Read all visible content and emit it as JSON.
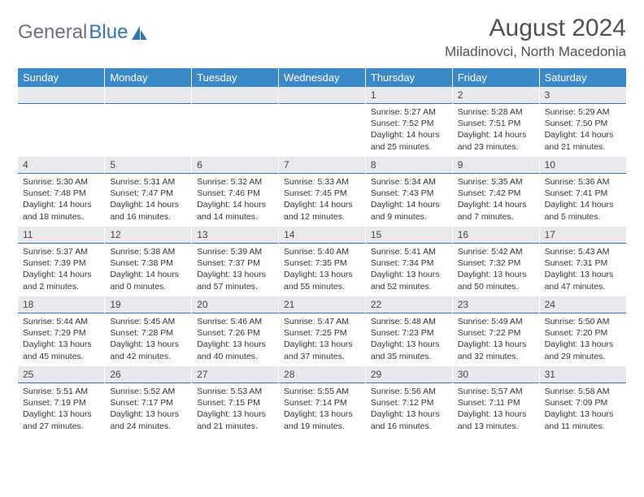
{
  "brand": {
    "part1": "General",
    "part2": "Blue"
  },
  "title": "August 2024",
  "location": "Miladinovci, North Macedonia",
  "colors": {
    "header_bg": "#3a8ac9",
    "daynum_bg": "#e7e9ec",
    "rule": "#2e74b5"
  },
  "weekdays": [
    "Sunday",
    "Monday",
    "Tuesday",
    "Wednesday",
    "Thursday",
    "Friday",
    "Saturday"
  ],
  "weeks": [
    [
      null,
      null,
      null,
      null,
      {
        "n": "1",
        "sr": "5:27 AM",
        "ss": "7:52 PM",
        "dl": "14 hours and 25 minutes."
      },
      {
        "n": "2",
        "sr": "5:28 AM",
        "ss": "7:51 PM",
        "dl": "14 hours and 23 minutes."
      },
      {
        "n": "3",
        "sr": "5:29 AM",
        "ss": "7:50 PM",
        "dl": "14 hours and 21 minutes."
      }
    ],
    [
      {
        "n": "4",
        "sr": "5:30 AM",
        "ss": "7:48 PM",
        "dl": "14 hours and 18 minutes."
      },
      {
        "n": "5",
        "sr": "5:31 AM",
        "ss": "7:47 PM",
        "dl": "14 hours and 16 minutes."
      },
      {
        "n": "6",
        "sr": "5:32 AM",
        "ss": "7:46 PM",
        "dl": "14 hours and 14 minutes."
      },
      {
        "n": "7",
        "sr": "5:33 AM",
        "ss": "7:45 PM",
        "dl": "14 hours and 12 minutes."
      },
      {
        "n": "8",
        "sr": "5:34 AM",
        "ss": "7:43 PM",
        "dl": "14 hours and 9 minutes."
      },
      {
        "n": "9",
        "sr": "5:35 AM",
        "ss": "7:42 PM",
        "dl": "14 hours and 7 minutes."
      },
      {
        "n": "10",
        "sr": "5:36 AM",
        "ss": "7:41 PM",
        "dl": "14 hours and 5 minutes."
      }
    ],
    [
      {
        "n": "11",
        "sr": "5:37 AM",
        "ss": "7:39 PM",
        "dl": "14 hours and 2 minutes."
      },
      {
        "n": "12",
        "sr": "5:38 AM",
        "ss": "7:38 PM",
        "dl": "14 hours and 0 minutes."
      },
      {
        "n": "13",
        "sr": "5:39 AM",
        "ss": "7:37 PM",
        "dl": "13 hours and 57 minutes."
      },
      {
        "n": "14",
        "sr": "5:40 AM",
        "ss": "7:35 PM",
        "dl": "13 hours and 55 minutes."
      },
      {
        "n": "15",
        "sr": "5:41 AM",
        "ss": "7:34 PM",
        "dl": "13 hours and 52 minutes."
      },
      {
        "n": "16",
        "sr": "5:42 AM",
        "ss": "7:32 PM",
        "dl": "13 hours and 50 minutes."
      },
      {
        "n": "17",
        "sr": "5:43 AM",
        "ss": "7:31 PM",
        "dl": "13 hours and 47 minutes."
      }
    ],
    [
      {
        "n": "18",
        "sr": "5:44 AM",
        "ss": "7:29 PM",
        "dl": "13 hours and 45 minutes."
      },
      {
        "n": "19",
        "sr": "5:45 AM",
        "ss": "7:28 PM",
        "dl": "13 hours and 42 minutes."
      },
      {
        "n": "20",
        "sr": "5:46 AM",
        "ss": "7:26 PM",
        "dl": "13 hours and 40 minutes."
      },
      {
        "n": "21",
        "sr": "5:47 AM",
        "ss": "7:25 PM",
        "dl": "13 hours and 37 minutes."
      },
      {
        "n": "22",
        "sr": "5:48 AM",
        "ss": "7:23 PM",
        "dl": "13 hours and 35 minutes."
      },
      {
        "n": "23",
        "sr": "5:49 AM",
        "ss": "7:22 PM",
        "dl": "13 hours and 32 minutes."
      },
      {
        "n": "24",
        "sr": "5:50 AM",
        "ss": "7:20 PM",
        "dl": "13 hours and 29 minutes."
      }
    ],
    [
      {
        "n": "25",
        "sr": "5:51 AM",
        "ss": "7:19 PM",
        "dl": "13 hours and 27 minutes."
      },
      {
        "n": "26",
        "sr": "5:52 AM",
        "ss": "7:17 PM",
        "dl": "13 hours and 24 minutes."
      },
      {
        "n": "27",
        "sr": "5:53 AM",
        "ss": "7:15 PM",
        "dl": "13 hours and 21 minutes."
      },
      {
        "n": "28",
        "sr": "5:55 AM",
        "ss": "7:14 PM",
        "dl": "13 hours and 19 minutes."
      },
      {
        "n": "29",
        "sr": "5:56 AM",
        "ss": "7:12 PM",
        "dl": "13 hours and 16 minutes."
      },
      {
        "n": "30",
        "sr": "5:57 AM",
        "ss": "7:11 PM",
        "dl": "13 hours and 13 minutes."
      },
      {
        "n": "31",
        "sr": "5:58 AM",
        "ss": "7:09 PM",
        "dl": "13 hours and 11 minutes."
      }
    ]
  ],
  "labels": {
    "sunrise": "Sunrise:",
    "sunset": "Sunset:",
    "daylight": "Daylight:"
  }
}
